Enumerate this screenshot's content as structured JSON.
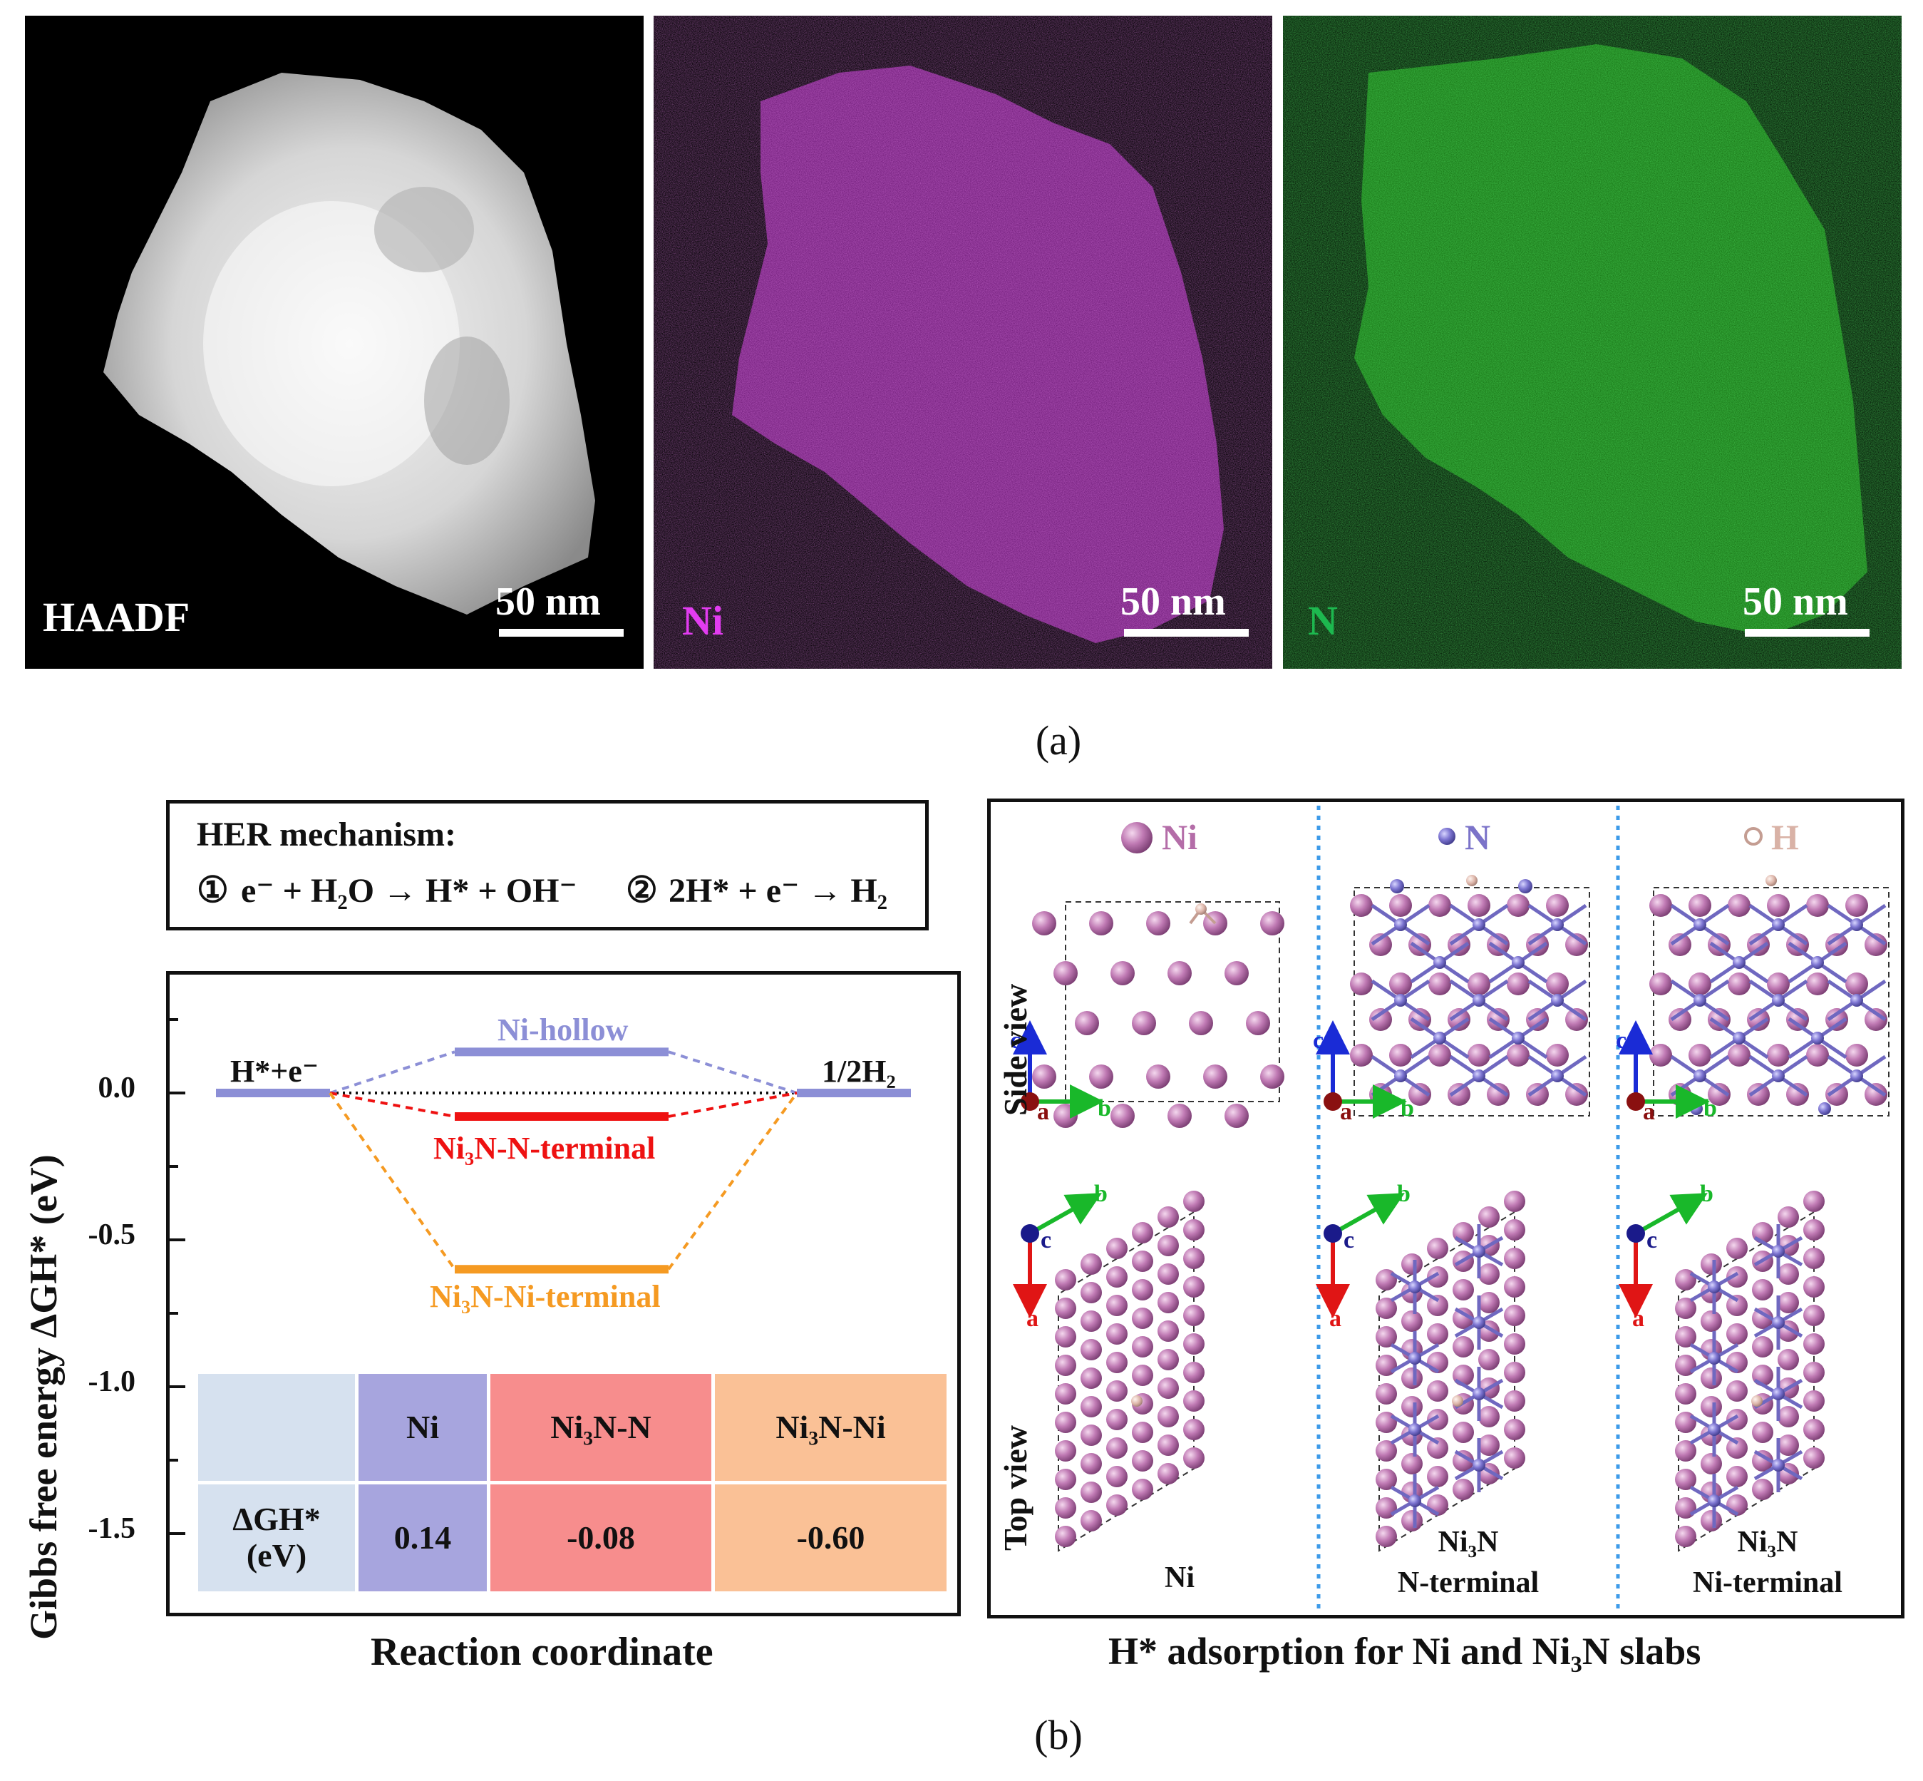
{
  "panel_a": {
    "label": "(a)",
    "images": [
      {
        "name": "haadf",
        "label": "HAADF",
        "scale": "50 nm",
        "label_color": "#ffffff",
        "map_color": "#d8d8d8"
      },
      {
        "name": "ni",
        "label": "Ni",
        "scale": "50 nm",
        "label_color": "#e23cf0",
        "map_color": "#c23bd0"
      },
      {
        "name": "n",
        "label": "N",
        "scale": "50 nm",
        "label_color": "#1db84f",
        "map_color": "#2bb82a"
      }
    ]
  },
  "panel_b": {
    "label": "(b)",
    "mechanism": {
      "title": "HER mechanism:",
      "step1_num": "①",
      "step1": "e⁻ + H₂O → H* + OH⁻",
      "step2_num": "②",
      "step2": "2H* + e⁻ → H₂"
    },
    "energy": {
      "ylabel": "Gibbs free energy ΔGH* (eV)",
      "xlabel": "Reaction coordinate",
      "yticks": [
        "0.0",
        "-0.5",
        "-1.0",
        "-1.5"
      ],
      "left_state": "H*+e⁻",
      "right_state": "1/2H₂",
      "levels": [
        {
          "label": "Ni-hollow",
          "value": 0.14,
          "color": "#8c8fd6"
        },
        {
          "label": "Ni₃N-N-terminal",
          "value": -0.08,
          "color": "#ee1111"
        },
        {
          "label": "Ni₃N-Ni-terminal",
          "value": -0.6,
          "color": "#f59a22"
        }
      ],
      "table": {
        "header": [
          "",
          "Ni",
          "Ni₃N-N",
          "Ni₃N-Ni"
        ],
        "row_label": "ΔGH* (eV)",
        "row_values": [
          "0.14",
          "-0.08",
          "-0.60"
        ]
      }
    },
    "structures": {
      "xlabel": "H* adsorption for Ni and Ni₃N slabs",
      "legend": [
        {
          "label": "Ni",
          "color": "#b46da8"
        },
        {
          "label": "N",
          "color": "#7b73c9"
        },
        {
          "label": "H",
          "color": "#d9b2a6"
        }
      ],
      "side_view": "Side view",
      "top_view": "Top view",
      "captions": [
        "Ni",
        "Ni₃N",
        "N-terminal",
        "Ni₃N",
        "Ni-terminal"
      ],
      "axes": {
        "c": "c",
        "a": "a",
        "b": "b"
      }
    }
  }
}
